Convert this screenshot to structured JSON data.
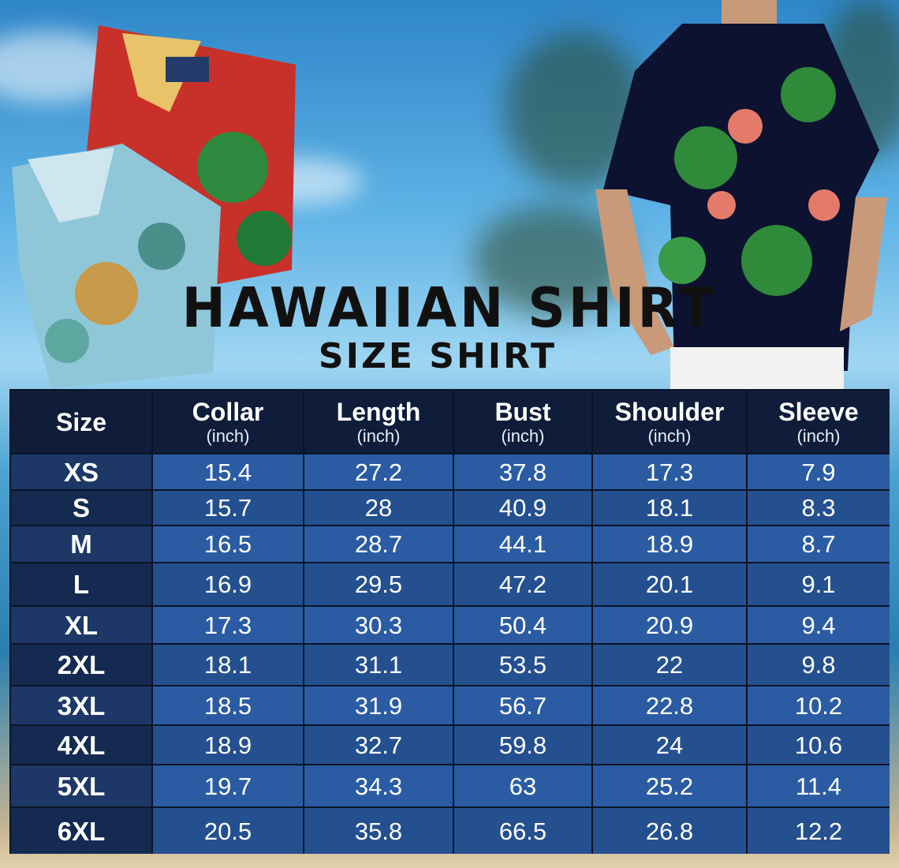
{
  "title": "HAWAIIAN SHIRT",
  "subtitle": "SIZE SHIRT",
  "colors": {
    "header": "#0f1d3a",
    "size_col_a": "#1d3866",
    "size_col_b": "#142a50",
    "data_a": "#2b5ca3",
    "data_b": "#24508f",
    "title_text": "#111111"
  },
  "table": {
    "size_header": "Size",
    "unit": "(inch)",
    "columns": [
      "Collar",
      "Length",
      "Bust",
      "Shoulder",
      "Sleeve"
    ],
    "rows": [
      {
        "size": "XS",
        "values": [
          "15.4",
          "27.2",
          "37.8",
          "17.3",
          "7.9"
        ]
      },
      {
        "size": "S",
        "values": [
          "15.7",
          "28",
          "40.9",
          "18.1",
          "8.3"
        ]
      },
      {
        "size": "M",
        "values": [
          "16.5",
          "28.7",
          "44.1",
          "18.9",
          "8.7"
        ]
      },
      {
        "size": "L",
        "values": [
          "16.9",
          "29.5",
          "47.2",
          "20.1",
          "9.1"
        ]
      },
      {
        "size": "XL",
        "values": [
          "17.3",
          "30.3",
          "50.4",
          "20.9",
          "9.4"
        ]
      },
      {
        "size": "2XL",
        "values": [
          "18.1",
          "31.1",
          "53.5",
          "22",
          "9.8"
        ]
      },
      {
        "size": "3XL",
        "values": [
          "18.5",
          "31.9",
          "56.7",
          "22.8",
          "10.2"
        ]
      },
      {
        "size": "4XL",
        "values": [
          "18.9",
          "32.7",
          "59.8",
          "24",
          "10.6"
        ]
      },
      {
        "size": "5XL",
        "values": [
          "19.7",
          "34.3",
          "63",
          "25.2",
          "11.4"
        ]
      },
      {
        "size": "6XL",
        "values": [
          "20.5",
          "35.8",
          "66.5",
          "26.8",
          "12.2"
        ]
      }
    ]
  }
}
